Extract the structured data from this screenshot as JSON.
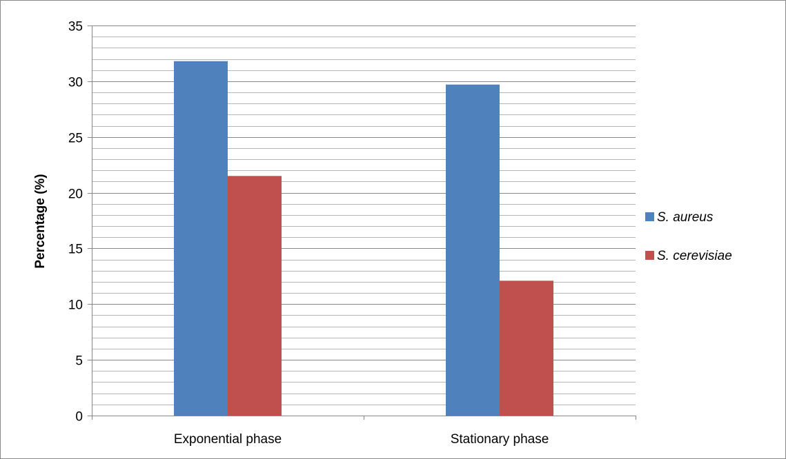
{
  "chart_data": {
    "type": "bar",
    "title": "",
    "xlabel": "",
    "ylabel": "Percentage (%)",
    "ylim": [
      0,
      35
    ],
    "yticks": [
      0,
      5,
      10,
      15,
      20,
      25,
      30,
      35
    ],
    "minor_grid_step": 1,
    "grid": true,
    "legend_position": "right",
    "categories": [
      "Exponential phase",
      "Stationary phase"
    ],
    "series": [
      {
        "name": "S. aureus",
        "color": "#4F81BD",
        "values": [
          31.8,
          29.7
        ]
      },
      {
        "name": "S. cerevisiae",
        "color": "#C0504D",
        "values": [
          21.5,
          12.1
        ]
      }
    ]
  }
}
